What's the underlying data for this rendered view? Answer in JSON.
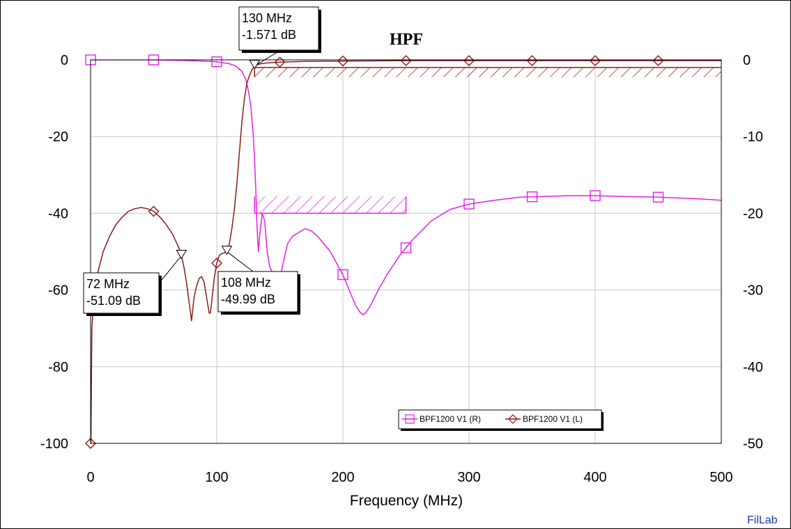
{
  "chart_data": {
    "type": "line",
    "title": "HPF",
    "xlabel": "Frequency (MHz)",
    "xlim": [
      0,
      500
    ],
    "ylim_left": [
      -100,
      0
    ],
    "ylim_right": [
      -50,
      0
    ],
    "x_ticks": [
      "0",
      "100",
      "200",
      "300",
      "400",
      "500"
    ],
    "y_ticks_left": [
      "0",
      "-20",
      "-40",
      "-60",
      "-80",
      "-100"
    ],
    "y_ticks_right": [
      "0",
      "-10",
      "-20",
      "-30",
      "-40",
      "-50"
    ],
    "grid": true,
    "legend_position": "bottom-right",
    "series": [
      {
        "name": "BPF1200 V1 (R)",
        "axis": "right",
        "color": "#e61ee6",
        "marker": "square",
        "x": [
          0,
          50,
          80,
          100,
          110,
          115,
          120,
          123,
          125,
          127,
          129,
          130,
          131,
          132,
          133,
          134,
          136,
          138,
          140,
          142,
          145,
          148,
          152,
          156,
          160,
          165,
          170,
          175,
          180,
          190,
          200,
          205,
          210,
          214,
          216,
          218,
          222,
          228,
          235,
          245,
          255,
          270,
          285,
          300,
          320,
          340,
          360,
          380,
          400,
          420,
          450,
          480,
          500
        ],
        "values": [
          0,
          0,
          -0.1,
          -0.25,
          -0.5,
          -0.8,
          -1.5,
          -2.5,
          -4,
          -6,
          -10,
          -13,
          -17,
          -22,
          -25,
          -23,
          -20,
          -21,
          -25,
          -27,
          -28,
          -31,
          -27,
          -24,
          -23,
          -22.5,
          -22,
          -22.3,
          -23,
          -25,
          -28,
          -30,
          -32,
          -33,
          -33.2,
          -33,
          -32,
          -30,
          -28,
          -25.5,
          -23.5,
          -21,
          -19.5,
          -18.8,
          -18.3,
          -17.9,
          -17.8,
          -17.7,
          -17.7,
          -17.8,
          -17.9,
          -18.1,
          -18.3
        ],
        "marker_x": [
          0,
          50,
          100,
          200,
          250,
          300,
          350,
          400,
          450
        ]
      },
      {
        "name": "BPF1200 V1 (L)",
        "axis": "left",
        "color": "#8b1a1a",
        "marker": "diamond",
        "x": [
          0.3,
          1,
          3,
          6,
          10,
          15,
          20,
          25,
          30,
          35,
          40,
          45,
          50,
          55,
          60,
          65,
          70,
          72,
          74,
          76,
          78,
          80,
          82,
          84,
          86,
          88,
          90,
          92,
          94,
          95,
          96,
          98,
          100,
          102,
          104,
          106,
          108,
          110,
          112,
          114,
          116,
          118,
          120,
          122,
          124,
          126,
          128,
          130,
          132,
          135,
          140,
          150,
          170,
          200,
          250,
          300,
          400,
          500
        ],
        "values": [
          -100,
          -70,
          -60,
          -55,
          -50,
          -46,
          -43,
          -41,
          -39.5,
          -38.8,
          -38.5,
          -38.8,
          -39.5,
          -41,
          -43,
          -45.5,
          -49,
          -51.1,
          -54,
          -58,
          -63,
          -68,
          -62,
          -59,
          -57,
          -56.5,
          -58,
          -62,
          -66,
          -66,
          -63,
          -57,
          -53,
          -51,
          -50.5,
          -50.3,
          -50,
          -48,
          -44,
          -39,
          -32,
          -24,
          -16,
          -10,
          -6,
          -4,
          -2.5,
          -1.571,
          -1.3,
          -1.0,
          -0.8,
          -0.6,
          -0.4,
          -0.3,
          -0.2,
          -0.2,
          -0.2,
          -0.2
        ],
        "marker_x": [
          0,
          50,
          100,
          150,
          200,
          250,
          300,
          350,
          400,
          450
        ]
      }
    ],
    "markers": [
      {
        "x": 72,
        "y": -51.09,
        "label_freq": "72 MHz",
        "label_val": "-51.09 dB"
      },
      {
        "x": 108,
        "y": -49.99,
        "label_freq": "108 MHz",
        "label_val": "-49.99 dB"
      },
      {
        "x": 130,
        "y": -1.571,
        "label_freq": "130 MHz",
        "label_val": "-1.571 dB"
      }
    ],
    "masks": [
      {
        "color": "#8b1a1a",
        "x1": 130,
        "x2": 500,
        "axis": "left",
        "y": -2,
        "y_bottom": -4.5
      },
      {
        "color": "#e61ee6",
        "x1": 130,
        "x2": 250,
        "axis": "right",
        "y": -20,
        "y_top": -17.8
      }
    ]
  },
  "brand": "FilLab"
}
